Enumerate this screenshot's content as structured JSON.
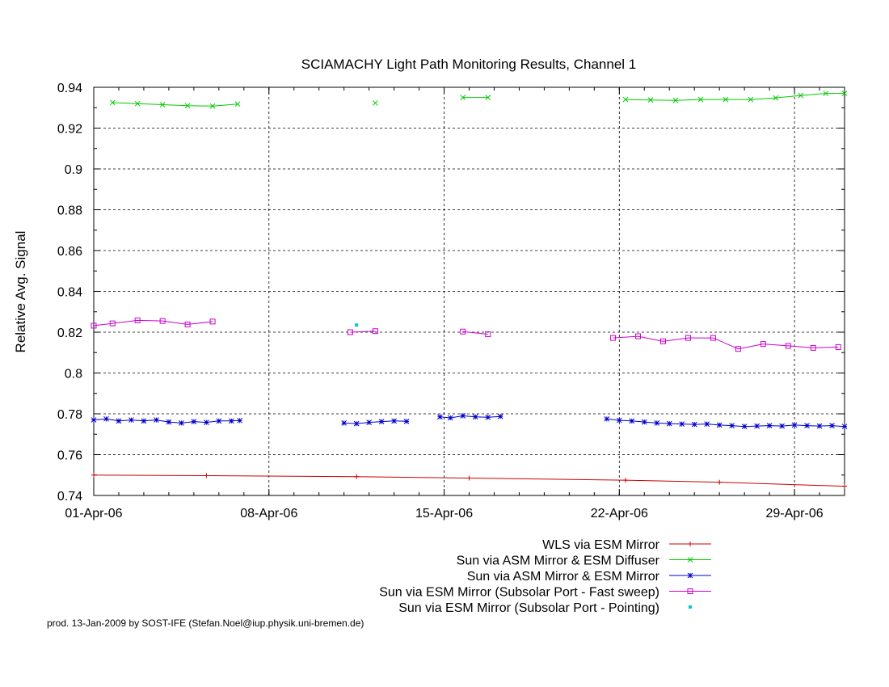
{
  "chart_data": {
    "type": "line",
    "title": "SCIAMACHY Light Path Monitoring Results, Channel 1",
    "xlabel": "",
    "ylabel": "Relative Avg. Signal",
    "x_unit": "date",
    "xlim": [
      "2006-04-01",
      "2006-05-01"
    ],
    "ylim": [
      0.74,
      0.94
    ],
    "y_ticks": [
      "0.74",
      "0.76",
      "0.78",
      "0.8",
      "0.82",
      "0.84",
      "0.86",
      "0.88",
      "0.9",
      "0.92",
      "0.94"
    ],
    "x_ticks": [
      {
        "date": "2006-04-01",
        "label": "01-Apr-06"
      },
      {
        "date": "2006-04-08",
        "label": "08-Apr-06"
      },
      {
        "date": "2006-04-15",
        "label": "15-Apr-06"
      },
      {
        "date": "2006-04-22",
        "label": "22-Apr-06"
      },
      {
        "date": "2006-04-29",
        "label": "29-Apr-06"
      }
    ],
    "grid": true,
    "legend_position": "bottom-right below plot",
    "series": [
      {
        "name": "WLS via ESM Mirror",
        "color": "#cc0000",
        "marker": "plus",
        "style": "line",
        "segments": [
          [
            {
              "x": "2006-04-01",
              "y": 0.75
            },
            {
              "x": "2006-04-05 12:00",
              "y": 0.7497
            },
            {
              "x": "2006-04-11 12:00",
              "y": 0.7492
            },
            {
              "x": "2006-04-16",
              "y": 0.7485
            },
            {
              "x": "2006-04-22 06:00",
              "y": 0.7475
            },
            {
              "x": "2006-04-26",
              "y": 0.7465
            },
            {
              "x": "2006-05-01",
              "y": 0.7445
            }
          ]
        ]
      },
      {
        "name": "Sun via ASM Mirror & ESM Diffuser",
        "color": "#00cc00",
        "marker": "cross",
        "style": "line",
        "segments": [
          [
            {
              "x": "2006-04-01 18:00",
              "y": 0.9325
            },
            {
              "x": "2006-04-02 18:00",
              "y": 0.932
            },
            {
              "x": "2006-04-03 18:00",
              "y": 0.9315
            },
            {
              "x": "2006-04-04 18:00",
              "y": 0.931
            },
            {
              "x": "2006-04-05 18:00",
              "y": 0.9308
            },
            {
              "x": "2006-04-06 18:00",
              "y": 0.9318
            }
          ],
          [
            {
              "x": "2006-04-12 06:00",
              "y": 0.9323
            }
          ],
          [
            {
              "x": "2006-04-15 18:00",
              "y": 0.935
            },
            {
              "x": "2006-04-16 18:00",
              "y": 0.935
            }
          ],
          [
            {
              "x": "2006-04-22 06:00",
              "y": 0.934
            },
            {
              "x": "2006-04-23 06:00",
              "y": 0.9338
            },
            {
              "x": "2006-04-24 06:00",
              "y": 0.9336
            },
            {
              "x": "2006-04-25 06:00",
              "y": 0.934
            },
            {
              "x": "2006-04-26 06:00",
              "y": 0.934
            },
            {
              "x": "2006-04-27 06:00",
              "y": 0.934
            },
            {
              "x": "2006-04-28 06:00",
              "y": 0.9348
            },
            {
              "x": "2006-04-29 06:00",
              "y": 0.936
            },
            {
              "x": "2006-04-30 06:00",
              "y": 0.937
            },
            {
              "x": "2006-05-01",
              "y": 0.937
            }
          ]
        ]
      },
      {
        "name": "Sun via ASM Mirror & ESM Mirror",
        "color": "#0000cc",
        "marker": "star",
        "style": "line",
        "segments": [
          [
            {
              "x": "2006-04-01",
              "y": 0.777
            },
            {
              "x": "2006-04-01 12:00",
              "y": 0.7775
            },
            {
              "x": "2006-04-02",
              "y": 0.7765
            },
            {
              "x": "2006-04-02 12:00",
              "y": 0.777
            },
            {
              "x": "2006-04-03",
              "y": 0.7765
            },
            {
              "x": "2006-04-03 12:00",
              "y": 0.777
            },
            {
              "x": "2006-04-04",
              "y": 0.776
            },
            {
              "x": "2006-04-04 12:00",
              "y": 0.7755
            },
            {
              "x": "2006-04-05",
              "y": 0.7762
            },
            {
              "x": "2006-04-05 12:00",
              "y": 0.7758
            },
            {
              "x": "2006-04-06",
              "y": 0.7765
            },
            {
              "x": "2006-04-06 12:00",
              "y": 0.7765
            },
            {
              "x": "2006-04-06 20:00",
              "y": 0.7767
            }
          ],
          [
            {
              "x": "2006-04-11",
              "y": 0.7755
            },
            {
              "x": "2006-04-11 12:00",
              "y": 0.7752
            },
            {
              "x": "2006-04-12",
              "y": 0.7758
            },
            {
              "x": "2006-04-12 12:00",
              "y": 0.7762
            },
            {
              "x": "2006-04-13",
              "y": 0.7765
            },
            {
              "x": "2006-04-13 12:00",
              "y": 0.7763
            }
          ],
          [
            {
              "x": "2006-04-14 20:00",
              "y": 0.7785
            },
            {
              "x": "2006-04-15 06:00",
              "y": 0.778
            },
            {
              "x": "2006-04-15 18:00",
              "y": 0.779
            },
            {
              "x": "2006-04-16 06:00",
              "y": 0.7785
            },
            {
              "x": "2006-04-16 18:00",
              "y": 0.7783
            },
            {
              "x": "2006-04-17 06:00",
              "y": 0.7787
            }
          ],
          [
            {
              "x": "2006-04-21 12:00",
              "y": 0.7775
            },
            {
              "x": "2006-04-22",
              "y": 0.7768
            },
            {
              "x": "2006-04-22 12:00",
              "y": 0.7765
            },
            {
              "x": "2006-04-23",
              "y": 0.776
            },
            {
              "x": "2006-04-23 12:00",
              "y": 0.7755
            },
            {
              "x": "2006-04-24",
              "y": 0.7752
            },
            {
              "x": "2006-04-24 12:00",
              "y": 0.775
            },
            {
              "x": "2006-04-25",
              "y": 0.7748
            },
            {
              "x": "2006-04-25 12:00",
              "y": 0.775
            },
            {
              "x": "2006-04-26",
              "y": 0.7745
            },
            {
              "x": "2006-04-26 12:00",
              "y": 0.7742
            },
            {
              "x": "2006-04-27",
              "y": 0.7738
            },
            {
              "x": "2006-04-27 12:00",
              "y": 0.774
            },
            {
              "x": "2006-04-28",
              "y": 0.7742
            },
            {
              "x": "2006-04-28 12:00",
              "y": 0.774
            },
            {
              "x": "2006-04-29",
              "y": 0.7745
            },
            {
              "x": "2006-04-29 12:00",
              "y": 0.7742
            },
            {
              "x": "2006-04-30",
              "y": 0.774
            },
            {
              "x": "2006-04-30 12:00",
              "y": 0.7742
            },
            {
              "x": "2006-05-01",
              "y": 0.7738
            }
          ]
        ]
      },
      {
        "name": "Sun via ESM Mirror (Subsolar Port - Fast sweep)",
        "color": "#cc00cc",
        "marker": "square",
        "style": "line",
        "segments": [
          [
            {
              "x": "2006-04-01",
              "y": 0.8232
            },
            {
              "x": "2006-04-01 18:00",
              "y": 0.8243
            },
            {
              "x": "2006-04-02 18:00",
              "y": 0.8258
            },
            {
              "x": "2006-04-03 18:00",
              "y": 0.8255
            },
            {
              "x": "2006-04-04 18:00",
              "y": 0.8238
            },
            {
              "x": "2006-04-05 18:00",
              "y": 0.8252
            }
          ],
          [
            {
              "x": "2006-04-11 06:00",
              "y": 0.82
            },
            {
              "x": "2006-04-12 06:00",
              "y": 0.8205
            }
          ],
          [
            {
              "x": "2006-04-15 18:00",
              "y": 0.8203
            },
            {
              "x": "2006-04-16 18:00",
              "y": 0.819
            }
          ],
          [
            {
              "x": "2006-04-21 18:00",
              "y": 0.8172
            },
            {
              "x": "2006-04-22 18:00",
              "y": 0.818
            },
            {
              "x": "2006-04-23 18:00",
              "y": 0.8155
            },
            {
              "x": "2006-04-24 18:00",
              "y": 0.8172
            },
            {
              "x": "2006-04-25 18:00",
              "y": 0.8172
            },
            {
              "x": "2006-04-26 18:00",
              "y": 0.8118
            },
            {
              "x": "2006-04-27 18:00",
              "y": 0.8142
            },
            {
              "x": "2006-04-28 18:00",
              "y": 0.8133
            },
            {
              "x": "2006-04-29 18:00",
              "y": 0.8123
            },
            {
              "x": "2006-04-30 18:00",
              "y": 0.8127
            }
          ]
        ]
      },
      {
        "name": "Sun via ESM Mirror (Subsolar Port - Pointing)",
        "color": "#00cccc",
        "marker": "dot",
        "style": "points",
        "segments": [
          [
            {
              "x": "2006-04-11 12:00",
              "y": 0.8235
            }
          ]
        ]
      }
    ]
  },
  "footer_text": "prod. 13-Jan-2009 by SOST-IFE (Stefan.Noel@iup.physik.uni-bremen.de)"
}
